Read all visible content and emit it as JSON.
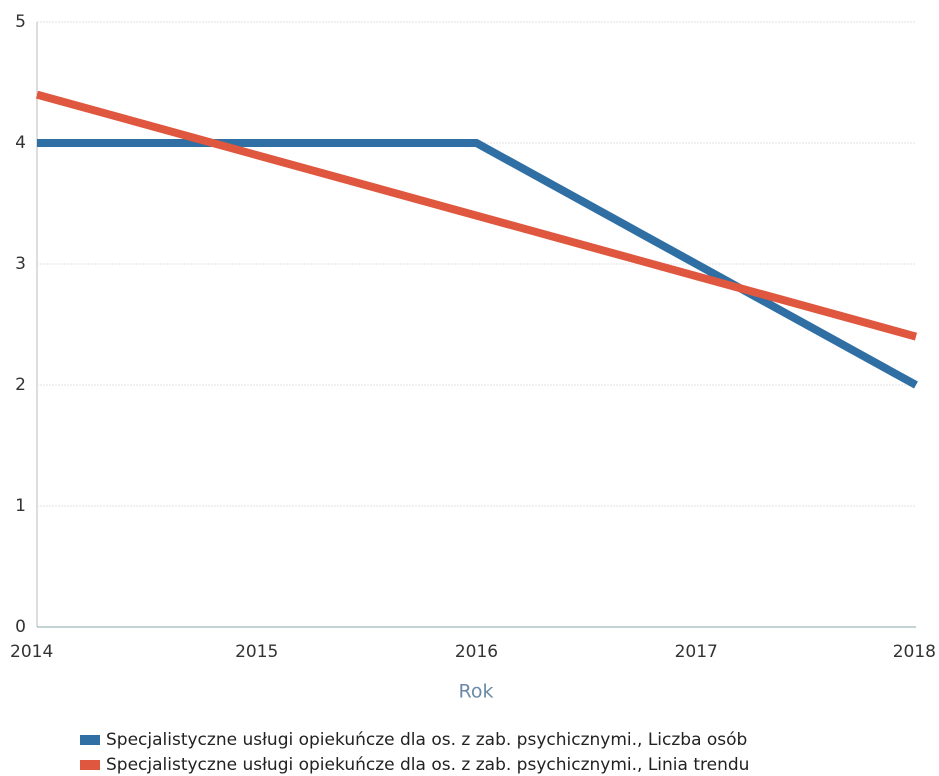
{
  "chart_data": {
    "type": "line",
    "x": [
      2014,
      2015,
      2016,
      2017,
      2018
    ],
    "x_label": "Rok",
    "series": [
      {
        "name": "Specjalistyczne usługi opiekuńcze dla os. z zab. psychicznymi., Liczba osób",
        "color": "#2f6fa3",
        "values": [
          4,
          4,
          4,
          3,
          2
        ]
      },
      {
        "name": "Specjalistyczne usługi opiekuńcze dla os. z zab. psychicznymi., Linia trendu",
        "color": "#e0573f",
        "values": [
          4.4,
          3.9,
          3.4,
          2.9,
          2.4
        ]
      }
    ],
    "xlim": [
      2014,
      2018
    ],
    "xticks": [
      2014,
      2015,
      2016,
      2017,
      2018
    ],
    "ylim": [
      0,
      5
    ],
    "yticks": [
      0,
      1,
      2,
      3,
      4,
      5
    ],
    "grid": true,
    "legend": "bottom"
  }
}
